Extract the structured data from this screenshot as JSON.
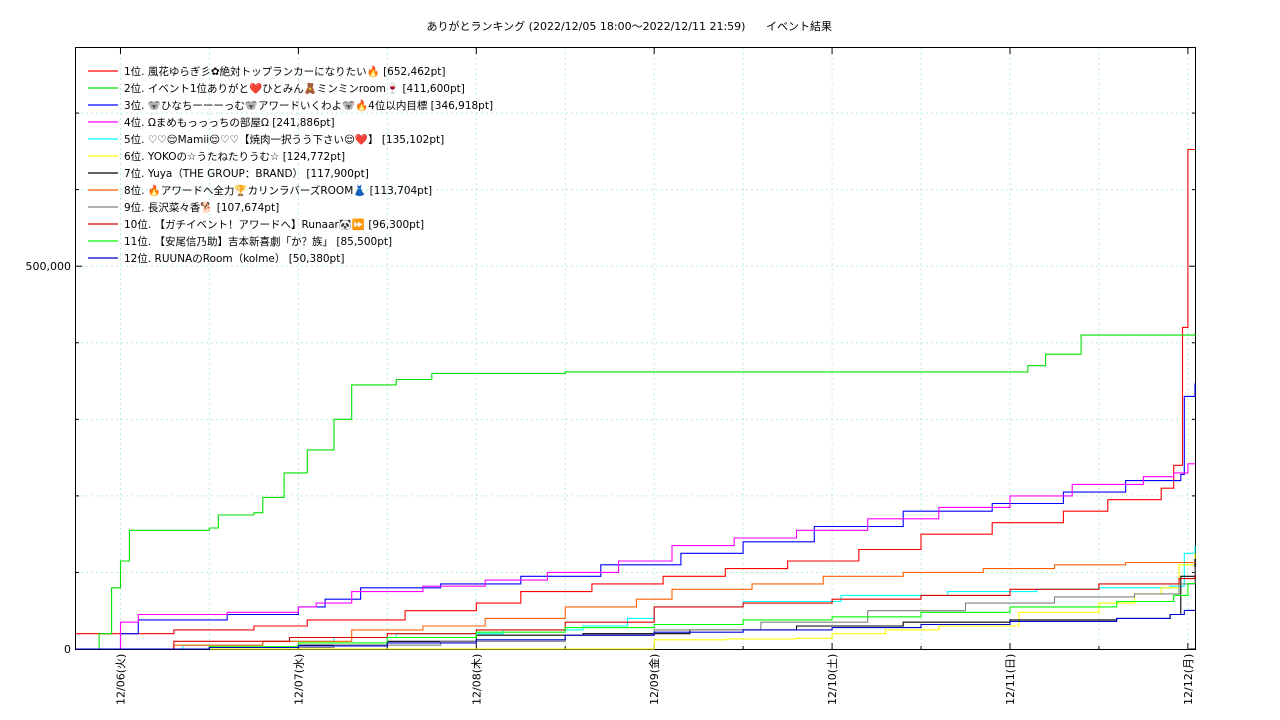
{
  "chart_data": {
    "type": "line",
    "title": "ありがとランキング (2022/12/05 18:00〜2022/12/11 21:59)",
    "subtitle": "イベント結果",
    "x_tick_labels": [
      "12/06(火)",
      "12/07(水)",
      "12/08(木)",
      "12/09(金)",
      "12/10(土)",
      "12/11(日)",
      "12/12(月)"
    ],
    "x_range_days": [
      -0.25,
      6.04
    ],
    "y_range": [
      0,
      785000
    ],
    "y_ticks": [
      {
        "value": 0,
        "label": "0"
      },
      {
        "value": 500000,
        "label": "500,000"
      }
    ],
    "grid": true,
    "legend_position": "top-left",
    "series": [
      {
        "name": "1位. 風花ゆらぎ彡✿絶対トップランカーになりたい🔥 [652,462pt]",
        "color": "#ff0000",
        "points": [
          [
            -0.25,
            20000
          ],
          [
            0.3,
            25000
          ],
          [
            0.75,
            30000
          ],
          [
            1.05,
            38000
          ],
          [
            1.6,
            50000
          ],
          [
            2.0,
            60000
          ],
          [
            2.25,
            75000
          ],
          [
            2.65,
            85000
          ],
          [
            3.05,
            95000
          ],
          [
            3.4,
            105000
          ],
          [
            3.75,
            115000
          ],
          [
            4.15,
            130000
          ],
          [
            4.5,
            150000
          ],
          [
            4.9,
            165000
          ],
          [
            5.3,
            180000
          ],
          [
            5.55,
            195000
          ],
          [
            5.85,
            210000
          ],
          [
            5.92,
            240000
          ],
          [
            5.97,
            420000
          ],
          [
            6.0,
            652462
          ],
          [
            6.04,
            652462
          ]
        ]
      },
      {
        "name": "2位. イベント1位ありがと❤️ひとみん🧸ミンミンroom🍷 [411,600pt]",
        "color": "#00e000",
        "points": [
          [
            -0.25,
            0
          ],
          [
            -0.12,
            20000
          ],
          [
            -0.05,
            80000
          ],
          [
            0.0,
            115000
          ],
          [
            0.05,
            155000
          ],
          [
            0.5,
            158000
          ],
          [
            0.55,
            175000
          ],
          [
            0.75,
            178000
          ],
          [
            0.8,
            198000
          ],
          [
            0.92,
            230000
          ],
          [
            1.05,
            260000
          ],
          [
            1.2,
            300000
          ],
          [
            1.3,
            345000
          ],
          [
            1.55,
            352000
          ],
          [
            1.75,
            360000
          ],
          [
            2.5,
            362000
          ],
          [
            3.5,
            362000
          ],
          [
            4.5,
            362000
          ],
          [
            5.1,
            370000
          ],
          [
            5.2,
            385000
          ],
          [
            5.4,
            410000
          ],
          [
            6.04,
            411600
          ]
        ]
      },
      {
        "name": "3位. 🐨ひなちーーーっむ🐨アワードいくわよ🐨🔥4位以内目標 [346,918pt]",
        "color": "#0000ff",
        "points": [
          [
            -0.25,
            0
          ],
          [
            0.0,
            20000
          ],
          [
            0.1,
            38000
          ],
          [
            0.6,
            45000
          ],
          [
            1.0,
            55000
          ],
          [
            1.15,
            65000
          ],
          [
            1.35,
            80000
          ],
          [
            1.8,
            85000
          ],
          [
            2.25,
            95000
          ],
          [
            2.7,
            110000
          ],
          [
            3.15,
            125000
          ],
          [
            3.5,
            140000
          ],
          [
            3.9,
            160000
          ],
          [
            4.4,
            180000
          ],
          [
            4.9,
            190000
          ],
          [
            5.3,
            205000
          ],
          [
            5.65,
            220000
          ],
          [
            5.96,
            228000
          ],
          [
            5.98,
            330000
          ],
          [
            6.04,
            346918
          ]
        ]
      },
      {
        "name": "4位. Ωまめもっっっちの部屋Ω [241,886pt]",
        "color": "#ff00ff",
        "points": [
          [
            -0.25,
            0
          ],
          [
            0.0,
            35000
          ],
          [
            0.1,
            45000
          ],
          [
            0.6,
            48000
          ],
          [
            1.0,
            55000
          ],
          [
            1.1,
            60000
          ],
          [
            1.3,
            75000
          ],
          [
            1.7,
            82000
          ],
          [
            2.05,
            90000
          ],
          [
            2.4,
            100000
          ],
          [
            2.8,
            115000
          ],
          [
            3.1,
            135000
          ],
          [
            3.45,
            145000
          ],
          [
            3.8,
            155000
          ],
          [
            4.2,
            170000
          ],
          [
            4.6,
            185000
          ],
          [
            5.0,
            200000
          ],
          [
            5.35,
            215000
          ],
          [
            5.75,
            225000
          ],
          [
            5.92,
            230000
          ],
          [
            6.0,
            241886
          ],
          [
            6.04,
            241886
          ]
        ]
      },
      {
        "name": "5位. ♡♡😌Mamii😌♡♡【焼肉一択うう下さい😌❤️】 [135,102pt]",
        "color": "#00ffff",
        "points": [
          [
            -0.25,
            0
          ],
          [
            0.35,
            5000
          ],
          [
            0.8,
            10000
          ],
          [
            1.2,
            15000
          ],
          [
            1.55,
            20000
          ],
          [
            2.15,
            25000
          ],
          [
            2.6,
            30000
          ],
          [
            2.85,
            40000
          ],
          [
            3.0,
            55000
          ],
          [
            3.5,
            62000
          ],
          [
            4.05,
            70000
          ],
          [
            4.65,
            75000
          ],
          [
            5.15,
            78000
          ],
          [
            5.5,
            80000
          ],
          [
            5.9,
            82000
          ],
          [
            5.98,
            125000
          ],
          [
            6.04,
            135102
          ]
        ]
      },
      {
        "name": "6位. YOKOの☆うたねたりうむ☆ [124,772pt]",
        "color": "#ffff00",
        "points": [
          [
            -0.25,
            0
          ],
          [
            1.0,
            0
          ],
          [
            2.2,
            0
          ],
          [
            3.0,
            0
          ],
          [
            3.0,
            12000
          ],
          [
            3.4,
            13000
          ],
          [
            3.8,
            14000
          ],
          [
            4.0,
            20000
          ],
          [
            4.3,
            25000
          ],
          [
            4.6,
            30000
          ],
          [
            5.05,
            48000
          ],
          [
            5.5,
            60000
          ],
          [
            5.7,
            72000
          ],
          [
            5.85,
            80000
          ],
          [
            5.95,
            110000
          ],
          [
            6.04,
            124772
          ]
        ]
      },
      {
        "name": "7位. Yuya（THE GROUP：BRAND） [117,900pt]",
        "color": "#000000",
        "points": [
          [
            -0.25,
            0
          ],
          [
            0.5,
            2000
          ],
          [
            1.0,
            5000
          ],
          [
            1.5,
            10000
          ],
          [
            2.0,
            18000
          ],
          [
            2.6,
            20000
          ],
          [
            3.2,
            25000
          ],
          [
            3.8,
            30000
          ],
          [
            4.4,
            35000
          ],
          [
            5.0,
            38000
          ],
          [
            5.6,
            40000
          ],
          [
            5.9,
            45000
          ],
          [
            5.96,
            95000
          ],
          [
            6.04,
            117900
          ]
        ]
      },
      {
        "name": "8位. 🔥アワードへ全力🏆カリンラバーズROOM👗 [113,704pt]",
        "color": "#ff6000",
        "points": [
          [
            -0.25,
            0
          ],
          [
            0.3,
            5000
          ],
          [
            0.8,
            10000
          ],
          [
            1.3,
            25000
          ],
          [
            1.7,
            30000
          ],
          [
            2.05,
            40000
          ],
          [
            2.5,
            55000
          ],
          [
            2.9,
            65000
          ],
          [
            3.1,
            78000
          ],
          [
            3.55,
            85000
          ],
          [
            3.95,
            95000
          ],
          [
            4.4,
            100000
          ],
          [
            4.85,
            105000
          ],
          [
            5.25,
            110000
          ],
          [
            5.65,
            113000
          ],
          [
            6.04,
            113704
          ]
        ]
      },
      {
        "name": "9位. 長沢菜々香🐕 [107,674pt]",
        "color": "#808080",
        "points": [
          [
            -0.25,
            0
          ],
          [
            0.5,
            2000
          ],
          [
            1.2,
            5000
          ],
          [
            1.8,
            10000
          ],
          [
            2.5,
            18000
          ],
          [
            3.0,
            25000
          ],
          [
            3.6,
            35000
          ],
          [
            4.2,
            50000
          ],
          [
            4.75,
            60000
          ],
          [
            5.25,
            68000
          ],
          [
            5.7,
            72000
          ],
          [
            5.95,
            85000
          ],
          [
            6.04,
            107674
          ]
        ]
      },
      {
        "name": "10位. 【ガチイベント！アワードへ】Runaar🐼⏩ [96,300pt]",
        "color": "#dd0000",
        "points": [
          [
            -0.25,
            0
          ],
          [
            0.3,
            10000
          ],
          [
            0.95,
            15000
          ],
          [
            1.5,
            20000
          ],
          [
            2.0,
            25000
          ],
          [
            2.5,
            35000
          ],
          [
            3.0,
            55000
          ],
          [
            3.5,
            60000
          ],
          [
            4.0,
            65000
          ],
          [
            4.5,
            70000
          ],
          [
            5.0,
            78000
          ],
          [
            5.5,
            85000
          ],
          [
            5.95,
            92000
          ],
          [
            6.04,
            96300
          ]
        ]
      },
      {
        "name": "11位. 【安尾信乃助】吉本新喜劇「か？族」 [85,500pt]",
        "color": "#00ff00",
        "points": [
          [
            -0.25,
            0
          ],
          [
            0.5,
            3000
          ],
          [
            1.0,
            8000
          ],
          [
            1.5,
            15000
          ],
          [
            2.0,
            22000
          ],
          [
            2.5,
            28000
          ],
          [
            3.0,
            32000
          ],
          [
            3.5,
            38000
          ],
          [
            4.0,
            42000
          ],
          [
            4.5,
            48000
          ],
          [
            5.0,
            55000
          ],
          [
            5.6,
            62000
          ],
          [
            5.92,
            70000
          ],
          [
            6.0,
            85500
          ],
          [
            6.04,
            85500
          ]
        ]
      },
      {
        "name": "12位. RUUNAのRoom（kolme） [50,380pt]",
        "color": "#0000cc",
        "points": [
          [
            -0.25,
            0
          ],
          [
            0.5,
            2000
          ],
          [
            1.0,
            4000
          ],
          [
            1.5,
            8000
          ],
          [
            2.0,
            12000
          ],
          [
            2.5,
            18000
          ],
          [
            3.0,
            22000
          ],
          [
            3.5,
            25000
          ],
          [
            4.0,
            28000
          ],
          [
            4.5,
            32000
          ],
          [
            5.0,
            36000
          ],
          [
            5.6,
            40000
          ],
          [
            5.9,
            45000
          ],
          [
            5.98,
            50380
          ],
          [
            6.04,
            50380
          ]
        ]
      }
    ]
  }
}
